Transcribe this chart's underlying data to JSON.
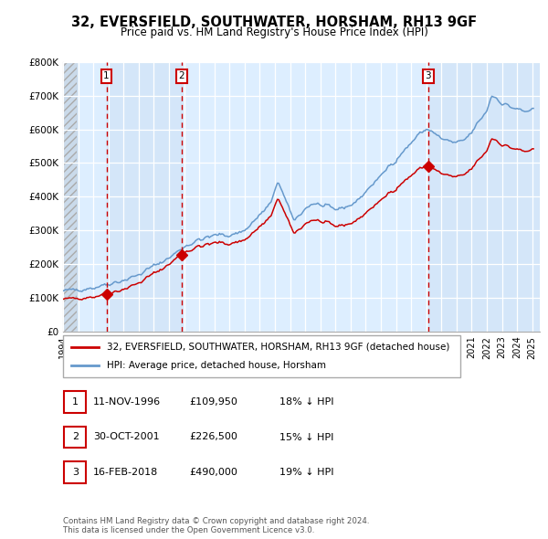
{
  "title": "32, EVERSFIELD, SOUTHWATER, HORSHAM, RH13 9GF",
  "subtitle": "Price paid vs. HM Land Registry's House Price Index (HPI)",
  "legend_line1": "32, EVERSFIELD, SOUTHWATER, HORSHAM, RH13 9GF (detached house)",
  "legend_line2": "HPI: Average price, detached house, Horsham",
  "transactions": [
    {
      "num": 1,
      "date_str": "11-NOV-1996",
      "date_x": 1996.87,
      "price": 109950,
      "pct": "18%",
      "direction": "↓"
    },
    {
      "num": 2,
      "date_str": "30-OCT-2001",
      "date_x": 2001.83,
      "price": 226500,
      "pct": "15%",
      "direction": "↓"
    },
    {
      "num": 3,
      "date_str": "16-FEB-2018",
      "date_x": 2018.12,
      "price": 490000,
      "pct": "19%",
      "direction": "↓"
    }
  ],
  "red_color": "#cc0000",
  "blue_color": "#6699cc",
  "plot_bg": "#ddeeff",
  "fig_bg": "#ffffff",
  "ylim": [
    0,
    800000
  ],
  "xlim_start": 1994.0,
  "xlim_end": 2025.5,
  "footer": "Contains HM Land Registry data © Crown copyright and database right 2024.\nThis data is licensed under the Open Government Licence v3.0."
}
